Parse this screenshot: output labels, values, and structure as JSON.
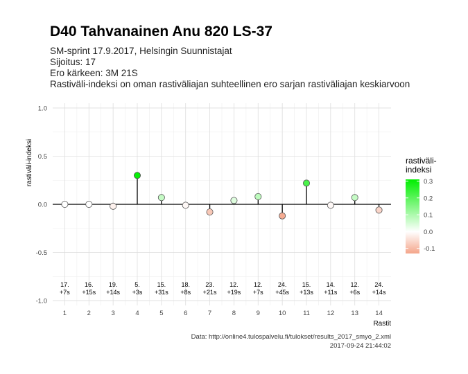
{
  "title": "D40 Tahvanainen Anu 820 LS-37",
  "subtitle_lines": [
    "SM-sprint 17.9.2017, Helsingin Suunnistajat",
    "Sijoitus: 17",
    "Ero kärkeen: 3M 21S",
    "Rastiväli-indeksi on oman rastiväliajan suhteellinen ero sarjan rastiväliajan keskiarvoon"
  ],
  "caption": {
    "source": "Data: http://online4.tulospalvelu.fi/tulokset/results_2017_smyo_2.xml",
    "timestamp": "2017-09-24 21:44:02"
  },
  "colors": {
    "positive": "#00ee00",
    "zero": "#ffffff",
    "negative": "#f4a58a",
    "stem": "#000000",
    "grid": "#dddddd"
  },
  "chart_data": {
    "type": "scatter",
    "style": "lollipop",
    "xlabel": "Rastit",
    "ylabel": "rastiväli-indeksi",
    "x": [
      1,
      2,
      3,
      4,
      5,
      6,
      7,
      8,
      9,
      10,
      11,
      12,
      13,
      14
    ],
    "xticks": [
      "1",
      "2",
      "3",
      "4",
      "5",
      "6",
      "7",
      "8",
      "9",
      "10",
      "11",
      "12",
      "13",
      "14"
    ],
    "y": [
      0.0,
      0.0,
      -0.02,
      0.3,
      0.07,
      -0.01,
      -0.08,
      0.04,
      0.08,
      -0.12,
      0.22,
      -0.01,
      0.07,
      -0.06
    ],
    "ylim": [
      -1.05,
      1.05
    ],
    "yticks": [
      -1.0,
      -0.5,
      0.0,
      0.5,
      1.0
    ],
    "ytick_labels": [
      "-1.0",
      "-0.5",
      "0.0",
      "0.5",
      "1.0"
    ],
    "point_labels": [
      [
        "17.",
        "+7s"
      ],
      [
        "16.",
        "+15s"
      ],
      [
        "19.",
        "+14s"
      ],
      [
        "5.",
        "+3s"
      ],
      [
        "15.",
        "+31s"
      ],
      [
        "18.",
        "+8s"
      ],
      [
        "23.",
        "+21s"
      ],
      [
        "12.",
        "+19s"
      ],
      [
        "12.",
        "+7s"
      ],
      [
        "24.",
        "+45s"
      ],
      [
        "15.",
        "+13s"
      ],
      [
        "14.",
        "+11s"
      ],
      [
        "12.",
        "+6s"
      ],
      [
        "24.",
        "+14s"
      ]
    ],
    "legend": {
      "title": [
        "rastiväli-",
        "indeksi"
      ],
      "ticks": [
        0.3,
        0.2,
        0.1,
        0.0,
        -0.1
      ],
      "tick_labels": [
        "0.3",
        "0.2",
        "0.1",
        "0.0",
        "-0.1"
      ],
      "range": [
        -0.13,
        0.31
      ],
      "placement": "right"
    },
    "grid": true
  }
}
